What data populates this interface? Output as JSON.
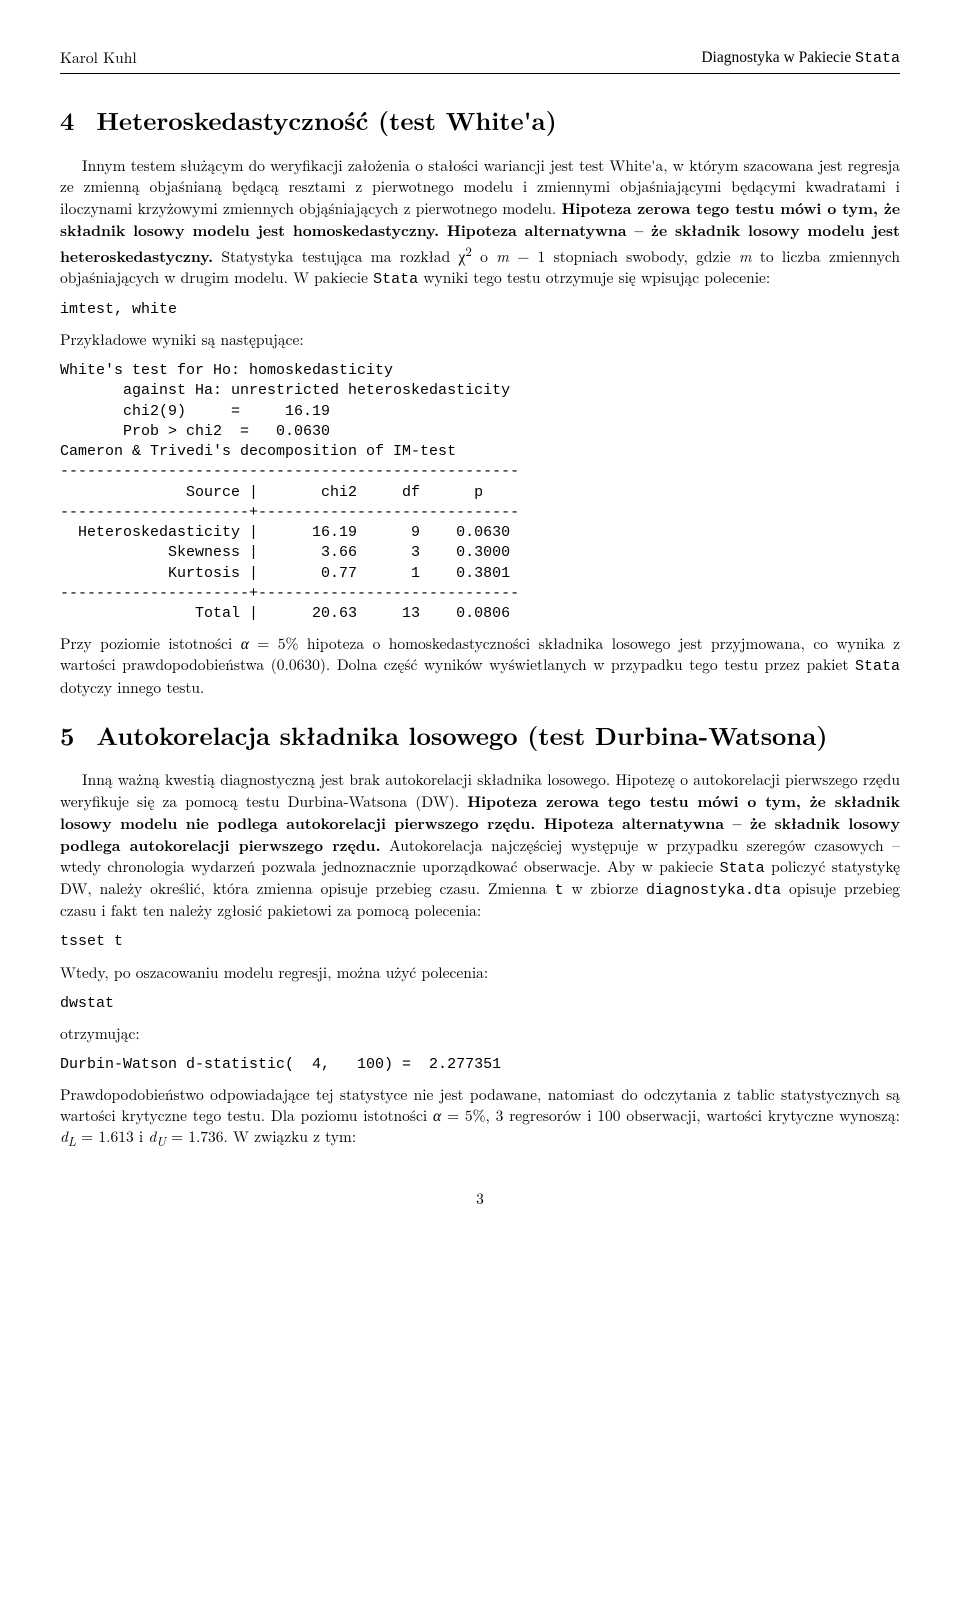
{
  "header": {
    "left": "Karol Kuhl",
    "right_prefix": "Diagnostyka w Pakiecie ",
    "right_tt": "Stata"
  },
  "section4": {
    "num": "4",
    "title": "Heteroskedastyczność (test White'a)",
    "para1_a": "Innym testem służącym do weryfikacji założenia o stałości wariancji jest test White'a, w którym szacowana jest regresja ze zmienną objaśnianą będącą resztami z pierwotnego modelu i zmiennymi objaśniającymi będącymi kwadratami i iloczynami krzyżowymi zmiennych objąśniających z pierwotnego modelu. ",
    "para1_bold1": "Hipoteza zerowa tego testu mówi o tym, że składnik losowy modelu jest homoskedastyczny. Hipoteza alternatywna – że składnik losowy modelu jest heteroskedastyczny.",
    "para1_b": " Statystyka testująca ma rozkład χ",
    "para1_sup": "2",
    "para1_c": " o ",
    "para1_m": "m",
    "para1_d": " − 1 stopniach swobody, gdzie ",
    "para1_m2": "m",
    "para1_e": " to liczba zmiennych objaśniających w drugim modelu. W pakiecie ",
    "para1_tt": "Stata",
    "para1_f": " wyniki tego testu otrzymuje się wpisując polecenie:",
    "cmd1": "imtest, white",
    "para2": "Przykładowe wyniki są następujące:",
    "output": "White's test for Ho: homoskedasticity\n       against Ha: unrestricted heteroskedasticity\n       chi2(9)     =     16.19\n       Prob > chi2  =   0.0630\nCameron & Trivedi's decomposition of IM-test\n---------------------------------------------------\n              Source |       chi2     df      p\n---------------------+-----------------------------\n  Heteroskedasticity |      16.19      9    0.0630\n            Skewness |       3.66      3    0.3000\n            Kurtosis |       0.77      1    0.3801\n---------------------+-----------------------------\n               Total |      20.63     13    0.0806",
    "para3_a": "Przy poziomie istotności ",
    "para3_alpha": "α",
    "para3_b": " = 5% hipoteza o homoskedastyczności składnika losowego jest przyjmowana, co wynika z wartości prawdopodobieństwa (0.0630). Dolna część wyników wyświetlanych w przypadku tego testu przez pakiet ",
    "para3_tt": "Stata",
    "para3_c": " dotyczy innego testu."
  },
  "section5": {
    "num": "5",
    "title": "Autokorelacja składnika losowego (test Durbina-Watsona)",
    "para1_a": "Inną ważną kwestią diagnostyczną jest brak autokorelacji składnika losowego. Hipotezę o autokorelacji pierwszego rzędu weryfikuje się za pomocą testu Durbina-Watsona (DW). ",
    "para1_bold": "Hipoteza zerowa tego testu mówi o tym, że składnik losowy modelu nie podlega autokorelacji pierwszego rzędu. Hipoteza alternatywna – że składnik losowy podlega autokorelacji pierwszego rzędu.",
    "para1_b": " Autokorelacja najczęściej występuje w przypadku szeregów czasowych – wtedy chronologia wydarzeń pozwala jednoznacznie uporządkować obserwacje. Aby w pakiecie ",
    "para1_tt1": "Stata",
    "para1_c": " policzyć statystykę DW, należy określić, która zmienna opisuje przebieg czasu. Zmienna ",
    "para1_tt2": "t",
    "para1_d": " w zbiorze ",
    "para1_tt3": "diagnostyka.dta",
    "para1_e": " opisuje przebieg czasu i fakt ten należy zgłosić pakietowi za pomocą polecenia:",
    "cmd1": "tsset t",
    "para2": "Wtedy, po oszacowaniu modelu regresji, można użyć polecenia:",
    "cmd2": "dwstat",
    "para3": "otrzymując:",
    "output": "Durbin-Watson d-statistic(  4,   100) =  2.277351",
    "para4_a": "Prawdopodobieństwo odpowiadające tej statystyce nie jest podawane, natomiast do odczytania z tablic statystycznych są wartości krytyczne tego testu. Dla poziomu istotności ",
    "para4_alpha": "α",
    "para4_b": " = 5%, 3 regresorów i 100 obserwacji, wartości krytyczne wynoszą: ",
    "para4_dl": "d",
    "para4_dl_sub": "L",
    "para4_c": " = 1.613 i ",
    "para4_du": "d",
    "para4_du_sub": "U",
    "para4_d": " = 1.736. W związku z tym:"
  },
  "page_number": "3"
}
